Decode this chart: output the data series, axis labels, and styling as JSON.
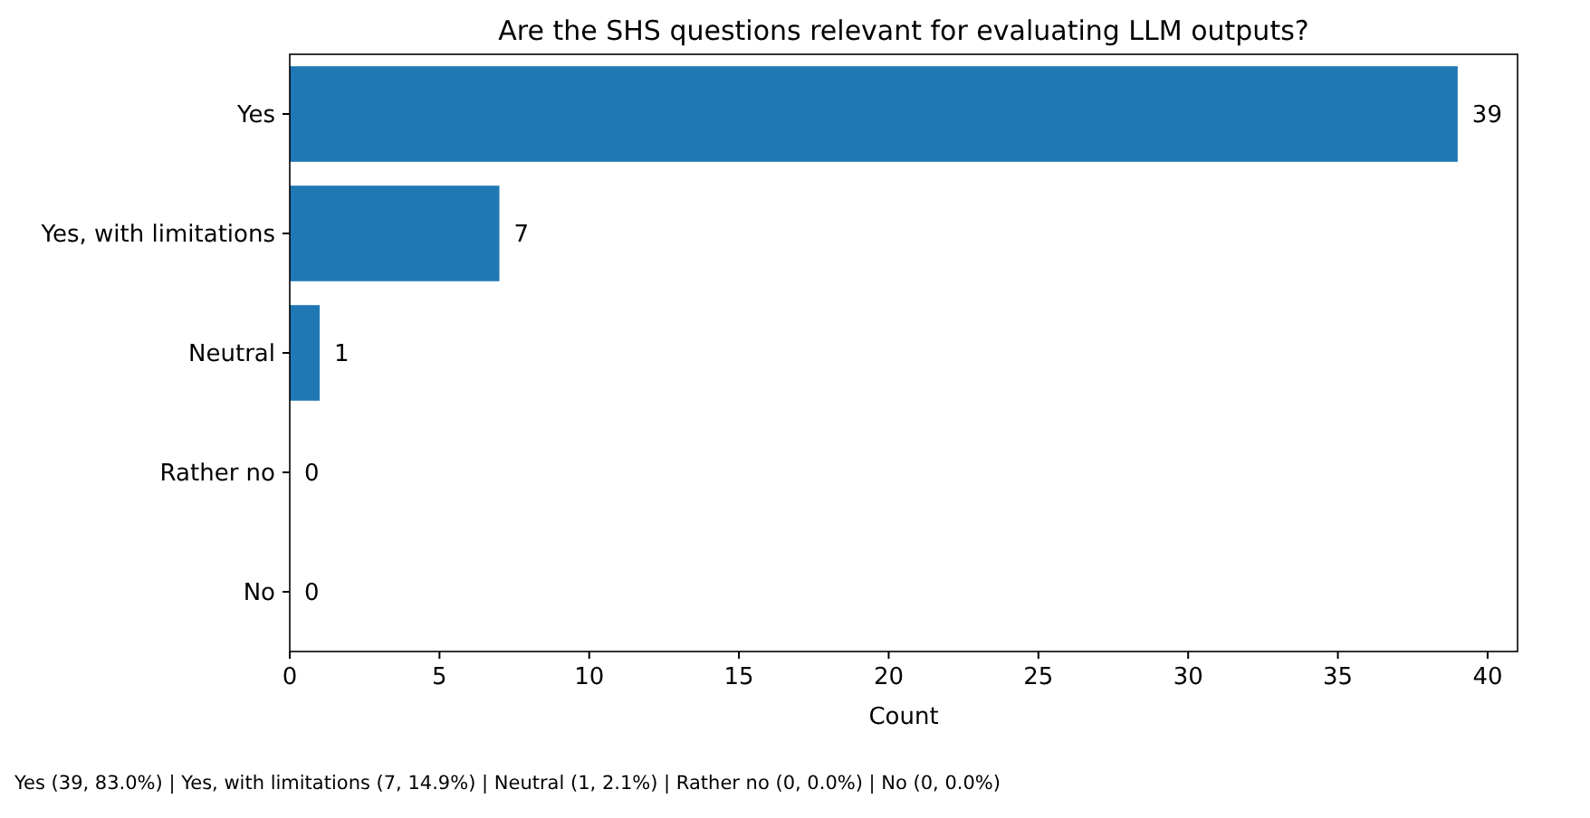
{
  "chart_data": {
    "type": "bar",
    "orientation": "horizontal",
    "title": "Are the SHS questions relevant for evaluating LLM outputs?",
    "xlabel": "Count",
    "categories": [
      "Yes",
      "Yes, with limitations",
      "Neutral",
      "Rather no",
      "No"
    ],
    "values": [
      39,
      7,
      1,
      0,
      0
    ],
    "color": "#1f77b4",
    "data_labels": true,
    "xlim": [
      0,
      41
    ],
    "xticks": [
      0,
      5,
      10,
      15,
      20,
      25,
      30,
      35,
      40
    ],
    "grid": false,
    "annotations": [
      "Yes (39, 83.0%) | Yes, with limitations (7, 14.9%) | Neutral (1, 2.1%) | Rather no (0, 0.0%) | No (0, 0.0%)"
    ]
  }
}
